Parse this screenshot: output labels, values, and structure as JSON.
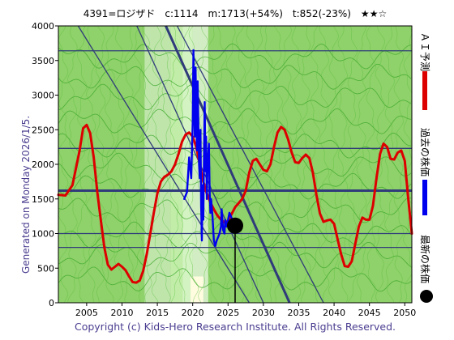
{
  "colors": {
    "background": "#ffffff",
    "plot_green": "#8fd16a",
    "light_green": "#c8f0b0",
    "pale_band": "#e8f5e0",
    "yellow_band": "#fffce0",
    "grid_line": "#2f3b7a",
    "ai_forecast": "#dd0000",
    "past_price": "#0000ee",
    "current_marker": "#000000",
    "copyright": "#4a3d8f"
  },
  "header": {
    "title": "4391=ロジザド　c:1114　m:1713(+54%)　t:852(-23%)　★★☆"
  },
  "side_label": "Generated on Monday 2026/1/5.",
  "footer": {
    "copyright": "Copyright (c) Kids-Hero Research Institute. All Rights Reserved."
  },
  "legend": [
    {
      "label": "ＡＩ予測",
      "icon": "red-line-icon",
      "color": "#dd0000"
    },
    {
      "label": "過去の株価",
      "icon": "blue-line-icon",
      "color": "#0000ee"
    },
    {
      "label": "最新の株価",
      "icon": "black-dot-icon",
      "color": "#000000"
    }
  ],
  "chart_data": {
    "type": "line",
    "title": "4391=ロジザド　c:1114　m:1713(+54%)　t:852(-23%)　★★☆",
    "xlim": [
      2001,
      2051
    ],
    "ylim": [
      0,
      4000
    ],
    "x_ticks": [
      2005,
      2010,
      2015,
      2020,
      2025,
      2030,
      2035,
      2040,
      2045,
      2050
    ],
    "y_ticks": [
      0,
      500,
      1000,
      1500,
      2000,
      2500,
      3000,
      3500,
      4000
    ],
    "horizontal_levels": [
      {
        "value": 3640,
        "weight": "thin"
      },
      {
        "value": 2230,
        "weight": "thin"
      },
      {
        "value": 1620,
        "weight": "thick"
      },
      {
        "value": 1000,
        "weight": "thin"
      },
      {
        "value": 800,
        "weight": "thin"
      }
    ],
    "trend_lines": [
      {
        "from": [
          2003.8,
          4000
        ],
        "to": [
          2028.0,
          0
        ],
        "weight": "thin"
      },
      {
        "from": [
          2012.1,
          4000
        ],
        "to": [
          2030.0,
          0
        ],
        "weight": "thin"
      },
      {
        "from": [
          2016.2,
          4000
        ],
        "to": [
          2033.7,
          0
        ],
        "weight": "thick"
      },
      {
        "from": [
          2017.8,
          4000
        ],
        "to": [
          2038.5,
          0
        ],
        "weight": "thin"
      }
    ],
    "current_marker": {
      "x": 2026.0,
      "y": 1114
    },
    "series": [
      {
        "name": "ＡＩ予測",
        "color": "#dd0000",
        "points": [
          [
            2001.0,
            1560
          ],
          [
            2002.0,
            1550
          ],
          [
            2003.0,
            1700
          ],
          [
            2004.0,
            2200
          ],
          [
            2004.5,
            2520
          ],
          [
            2005.0,
            2570
          ],
          [
            2005.5,
            2450
          ],
          [
            2006.0,
            2100
          ],
          [
            2006.5,
            1600
          ],
          [
            2007.0,
            1200
          ],
          [
            2007.5,
            800
          ],
          [
            2008.0,
            550
          ],
          [
            2008.5,
            480
          ],
          [
            2009.0,
            520
          ],
          [
            2009.5,
            560
          ],
          [
            2010.0,
            520
          ],
          [
            2010.5,
            470
          ],
          [
            2011.0,
            380
          ],
          [
            2011.5,
            300
          ],
          [
            2012.0,
            290
          ],
          [
            2012.5,
            320
          ],
          [
            2013.0,
            460
          ],
          [
            2013.5,
            700
          ],
          [
            2014.0,
            1000
          ],
          [
            2014.5,
            1300
          ],
          [
            2015.0,
            1580
          ],
          [
            2015.5,
            1750
          ],
          [
            2016.0,
            1820
          ],
          [
            2016.5,
            1850
          ],
          [
            2017.0,
            1900
          ],
          [
            2017.5,
            2000
          ],
          [
            2018.0,
            2150
          ],
          [
            2018.5,
            2330
          ],
          [
            2019.0,
            2430
          ],
          [
            2019.5,
            2460
          ],
          [
            2020.0,
            2400
          ],
          [
            2020.5,
            2250
          ],
          [
            2021.0,
            2000
          ],
          [
            2021.5,
            1750
          ],
          [
            2022.0,
            1580
          ],
          [
            2022.5,
            1450
          ],
          [
            2023.0,
            1350
          ],
          [
            2023.5,
            1260
          ],
          [
            2024.0,
            1200
          ],
          [
            2024.5,
            1160
          ],
          [
            2025.0,
            1180
          ],
          [
            2025.5,
            1280
          ],
          [
            2026.0,
            1380
          ],
          [
            2026.5,
            1440
          ],
          [
            2027.0,
            1500
          ],
          [
            2027.5,
            1620
          ],
          [
            2028.0,
            1880
          ],
          [
            2028.5,
            2050
          ],
          [
            2029.0,
            2080
          ],
          [
            2029.5,
            2000
          ],
          [
            2030.0,
            1920
          ],
          [
            2030.5,
            1900
          ],
          [
            2031.0,
            2000
          ],
          [
            2031.5,
            2250
          ],
          [
            2032.0,
            2460
          ],
          [
            2032.5,
            2540
          ],
          [
            2033.0,
            2500
          ],
          [
            2033.5,
            2360
          ],
          [
            2034.0,
            2170
          ],
          [
            2034.5,
            2030
          ],
          [
            2035.0,
            2020
          ],
          [
            2035.5,
            2090
          ],
          [
            2036.0,
            2140
          ],
          [
            2036.5,
            2090
          ],
          [
            2037.0,
            1880
          ],
          [
            2037.5,
            1560
          ],
          [
            2038.0,
            1290
          ],
          [
            2038.5,
            1170
          ],
          [
            2039.0,
            1190
          ],
          [
            2039.5,
            1200
          ],
          [
            2040.0,
            1140
          ],
          [
            2040.5,
            920
          ],
          [
            2041.0,
            700
          ],
          [
            2041.5,
            530
          ],
          [
            2042.0,
            520
          ],
          [
            2042.5,
            600
          ],
          [
            2043.0,
            850
          ],
          [
            2043.5,
            1100
          ],
          [
            2044.0,
            1230
          ],
          [
            2044.5,
            1200
          ],
          [
            2045.0,
            1200
          ],
          [
            2045.5,
            1400
          ],
          [
            2046.0,
            1800
          ],
          [
            2046.5,
            2150
          ],
          [
            2047.0,
            2300
          ],
          [
            2047.5,
            2250
          ],
          [
            2048.0,
            2080
          ],
          [
            2048.5,
            2070
          ],
          [
            2049.0,
            2170
          ],
          [
            2049.5,
            2200
          ],
          [
            2050.0,
            2050
          ],
          [
            2050.5,
            1500
          ],
          [
            2051.0,
            1000
          ]
        ]
      },
      {
        "name": "過去の株価",
        "color": "#0000ee",
        "points": [
          [
            2018.8,
            1500
          ],
          [
            2019.2,
            1600
          ],
          [
            2019.5,
            2100
          ],
          [
            2019.8,
            1800
          ],
          [
            2020.0,
            2600
          ],
          [
            2020.1,
            3650
          ],
          [
            2020.2,
            3000
          ],
          [
            2020.3,
            2400
          ],
          [
            2020.4,
            3400
          ],
          [
            2020.6,
            2200
          ],
          [
            2020.7,
            3200
          ],
          [
            2020.9,
            2000
          ],
          [
            2021.0,
            1800
          ],
          [
            2021.1,
            2500
          ],
          [
            2021.2,
            1400
          ],
          [
            2021.3,
            900
          ],
          [
            2021.4,
            1700
          ],
          [
            2021.5,
            1200
          ],
          [
            2021.6,
            2100
          ],
          [
            2021.7,
            2900
          ],
          [
            2021.8,
            1900
          ],
          [
            2021.9,
            2400
          ],
          [
            2022.0,
            1500
          ],
          [
            2022.1,
            2000
          ],
          [
            2022.3,
            2300
          ],
          [
            2022.4,
            1600
          ],
          [
            2022.5,
            1300
          ],
          [
            2022.6,
            1500
          ],
          [
            2022.8,
            1250
          ],
          [
            2023.0,
            900
          ],
          [
            2023.2,
            820
          ],
          [
            2023.4,
            900
          ],
          [
            2023.6,
            950
          ],
          [
            2023.8,
            1000
          ],
          [
            2024.0,
            1100
          ],
          [
            2024.1,
            1350
          ],
          [
            2024.2,
            1200
          ],
          [
            2024.3,
            1050
          ],
          [
            2024.5,
            1000
          ],
          [
            2024.6,
            1200
          ],
          [
            2024.8,
            1100
          ],
          [
            2025.0,
            1200
          ],
          [
            2025.2,
            1300
          ],
          [
            2025.4,
            1250
          ],
          [
            2025.6,
            1200
          ],
          [
            2025.8,
            1150
          ],
          [
            2026.0,
            1114
          ]
        ]
      }
    ]
  }
}
